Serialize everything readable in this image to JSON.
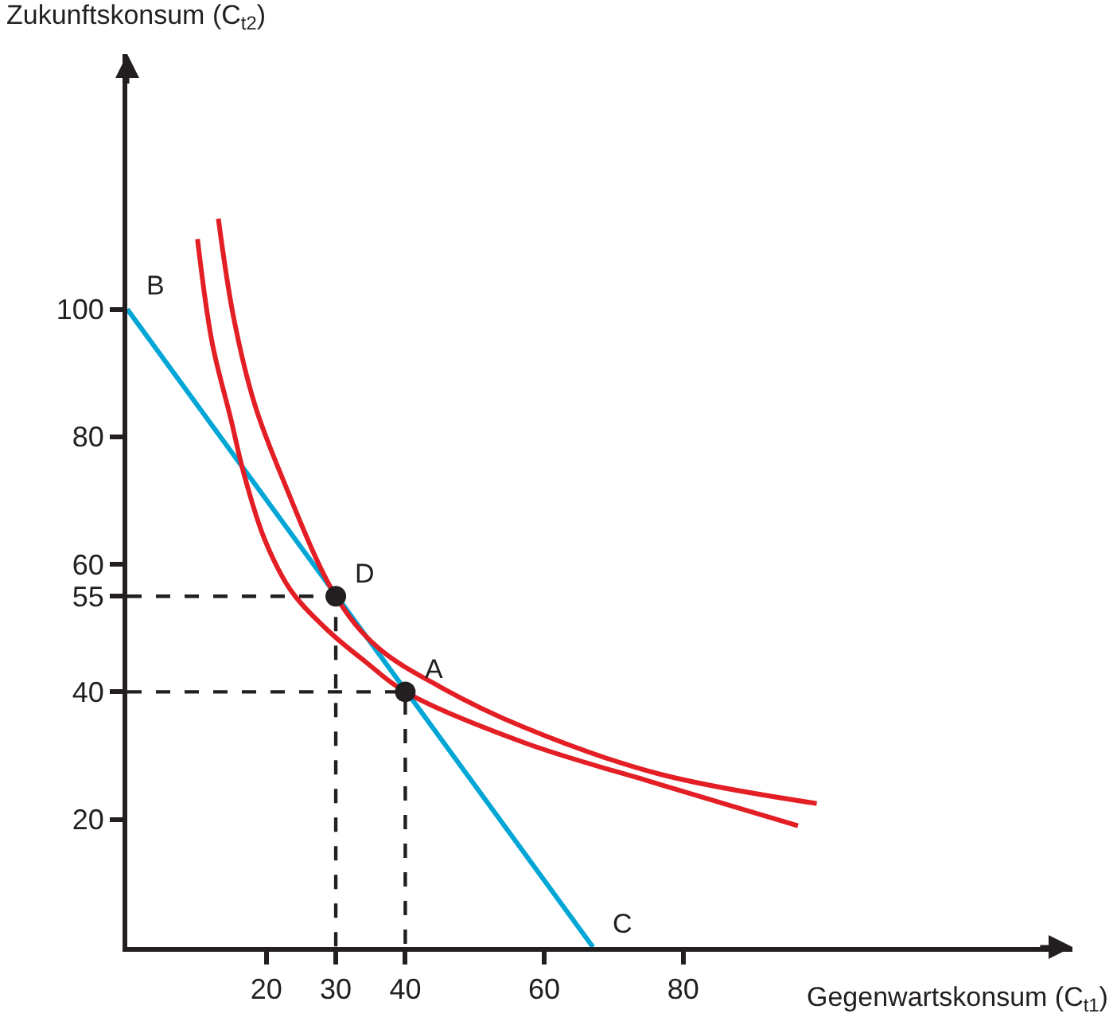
{
  "chart_data": {
    "type": "line",
    "xlabel": "Gegenwartskonsum (C$_{t1}$)",
    "ylabel": "Zukunftskonsum (C$_{t2}$)",
    "xlim": [
      0,
      136
    ],
    "ylim": [
      0,
      140
    ],
    "xticks": [
      20,
      30,
      40,
      60,
      80
    ],
    "yticks": [
      20,
      40,
      55,
      60,
      80,
      100
    ],
    "series": [
      {
        "color": "#00a6d6",
        "x": [
          0,
          67
        ],
        "values": [
          100,
          0
        ]
      },
      {
        "color": "#e31e24",
        "x": [
          10.1,
          12.2,
          14.9,
          16.8,
          19.8,
          23.6,
          29,
          34.3,
          40,
          57.2,
          76.3,
          96.5
        ],
        "values": [
          111,
          94.8,
          82.8,
          74.1,
          63.8,
          55.8,
          49.5,
          44.7,
          40,
          32,
          25.6,
          19
        ]
      },
      {
        "color": "#e31e24",
        "x": [
          13.1,
          15.3,
          18.3,
          22.1,
          30,
          35.9,
          45,
          57.2,
          76.3,
          99.2
        ],
        "values": [
          114.2,
          98.7,
          85.2,
          74.1,
          55,
          47.1,
          40.8,
          34.4,
          27.2,
          22.5
        ]
      },
      {
        "color": "#231f20",
        "line_style": "dashed",
        "x": [
          0,
          30,
          30
        ],
        "values": [
          55,
          55,
          0
        ]
      },
      {
        "color": "#231f20",
        "line_style": "dashed",
        "x": [
          0,
          40,
          40
        ],
        "values": [
          40,
          40,
          0
        ]
      },
      {
        "type": "scatter",
        "color": "#231f20",
        "marker": "circle",
        "x": [
          30,
          40
        ],
        "values": [
          55,
          40
        ]
      }
    ],
    "annotations": [
      {
        "text": "B",
        "x": 0,
        "y": 100
      },
      {
        "text": "C",
        "x": 67,
        "y": 0
      },
      {
        "text": "D",
        "x": 30,
        "y": 55
      },
      {
        "text": "A",
        "x": 40,
        "y": 40
      }
    ]
  }
}
